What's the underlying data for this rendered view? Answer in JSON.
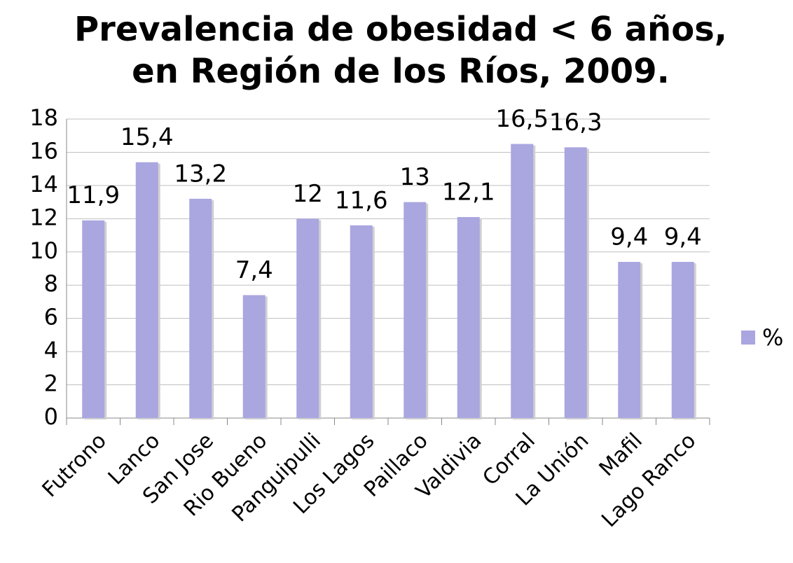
{
  "chart_data": {
    "type": "bar",
    "title": [
      "Prevalencia de obesidad < 6 años,",
      "en Región de los Ríos, 2009."
    ],
    "categories": [
      "Futrono",
      "Lanco",
      "San Jose",
      "Rio Bueno",
      "Panguipulli",
      "Los Lagos",
      "Paillaco",
      "Valdivia",
      "Corral",
      "La Unión",
      "Mafil",
      "Lago Ranco"
    ],
    "series": [
      {
        "name": "%",
        "color": "#aaa6e0",
        "values": [
          11.9,
          15.4,
          13.2,
          7.4,
          12,
          11.6,
          13,
          12.1,
          16.5,
          16.3,
          9.4,
          9.4
        ],
        "value_labels": [
          "11,9",
          "15,4",
          "13,2",
          "7,4",
          "12",
          "11,6",
          "13",
          "12,1",
          "16,5",
          "16,3",
          "9,4",
          "9,4"
        ]
      }
    ],
    "ylim": [
      0,
      18
    ],
    "yticks": [
      0,
      2,
      4,
      6,
      8,
      10,
      12,
      14,
      16,
      18
    ],
    "grid": true,
    "legend": "right"
  }
}
